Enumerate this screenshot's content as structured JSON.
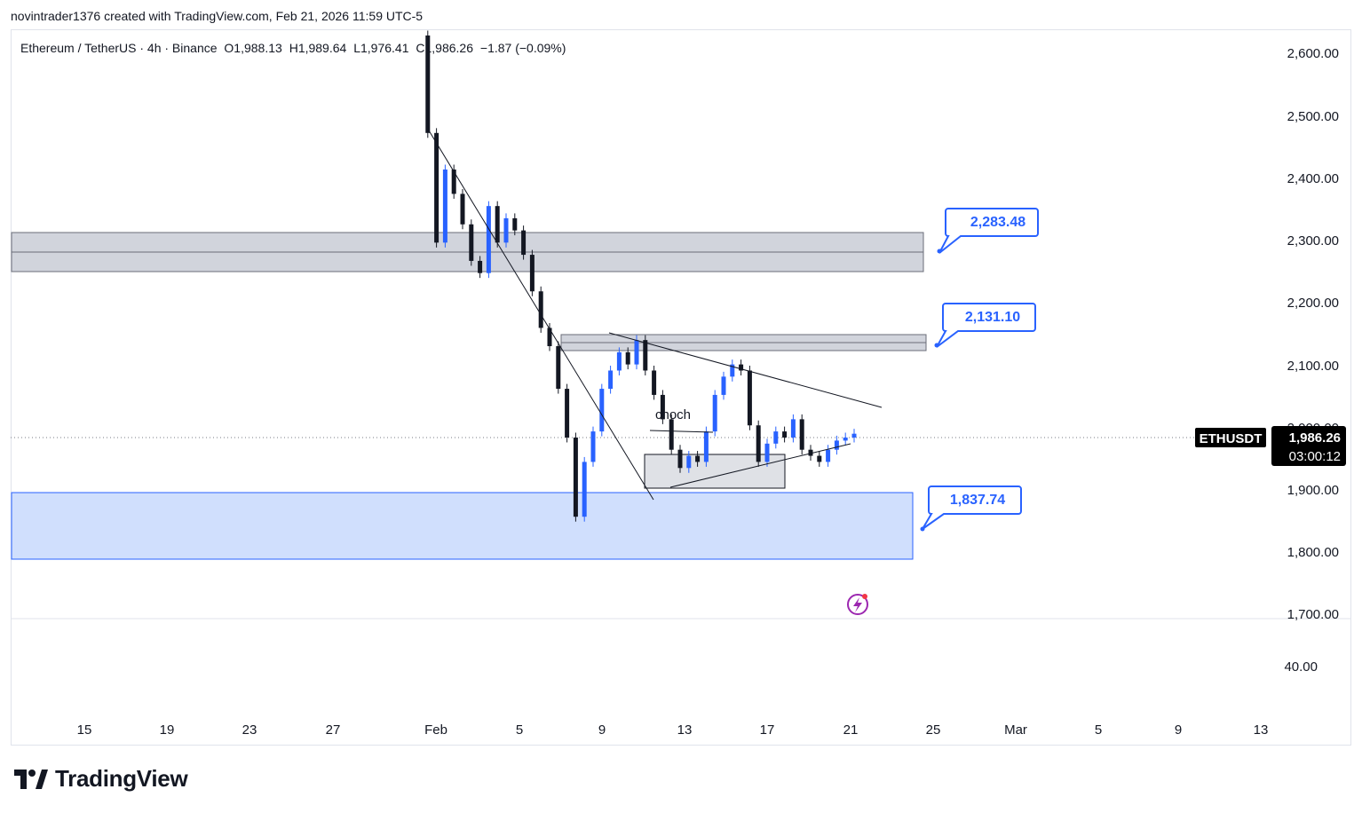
{
  "header": {
    "attribution": "novintrader1376 created with TradingView.com, Feb 21, 2026 11:59 UTC-5"
  },
  "legend": {
    "symbol": "Ethereum / TetherUS · 4h · Binance",
    "open": "O1,988.13",
    "high": "H1,989.64",
    "low": "L1,976.41",
    "close": "C1,986.26",
    "change": "−1.87 (−0.09%)"
  },
  "price_axis": {
    "ticks": [
      "2,600.00",
      "2,500.00",
      "2,400.00",
      "2,300.00",
      "2,200.00",
      "2,100.00",
      "2,000.00",
      "1,900.00",
      "1,800.00",
      "1,700.00"
    ],
    "indicator_tick": "40.00"
  },
  "time_axis": {
    "ticks": [
      "15",
      "19",
      "23",
      "27",
      "Feb",
      "5",
      "9",
      "13",
      "17",
      "21",
      "25",
      "Mar",
      "5",
      "9",
      "13"
    ]
  },
  "last_price": {
    "symbol": "ETHUSDT",
    "price": "1,986.26",
    "countdown": "03:00:12",
    "tag_color": "#000000"
  },
  "annotations": {
    "callouts": [
      "2,283.48",
      "2,131.10",
      "1,837.74"
    ],
    "text_label": "choch",
    "zone_fill": "#d1d4dc",
    "demand_fill": "#d0dffd",
    "accent": "#2962ff"
  },
  "chart_data": {
    "type": "candlestick",
    "title": "",
    "xlabel": "",
    "ylabel": "",
    "ylim": [
      1690,
      2640
    ],
    "up_color": "#2962ff",
    "down_color": "#131722",
    "series": [
      {
        "values": [
          2640,
          2480,
          2300,
          2420,
          2380,
          2330,
          2270,
          2250,
          2360,
          2300,
          2340,
          2320,
          2280,
          2220,
          2160,
          2130,
          2060,
          1980,
          1850,
          1940,
          1990,
          2060,
          2090,
          2120,
          2100,
          2140,
          2090,
          2050,
          2010,
          1960,
          1930,
          1950,
          1940,
          1990,
          2050,
          2080,
          2100,
          2090,
          2000,
          1940,
          1970,
          1990,
          1980,
          2010,
          1960,
          1950,
          1940,
          1960,
          1975,
          1980,
          1986.26
        ]
      }
    ],
    "key_levels": [
      2283.48,
      2131.1,
      1837.74
    ]
  }
}
